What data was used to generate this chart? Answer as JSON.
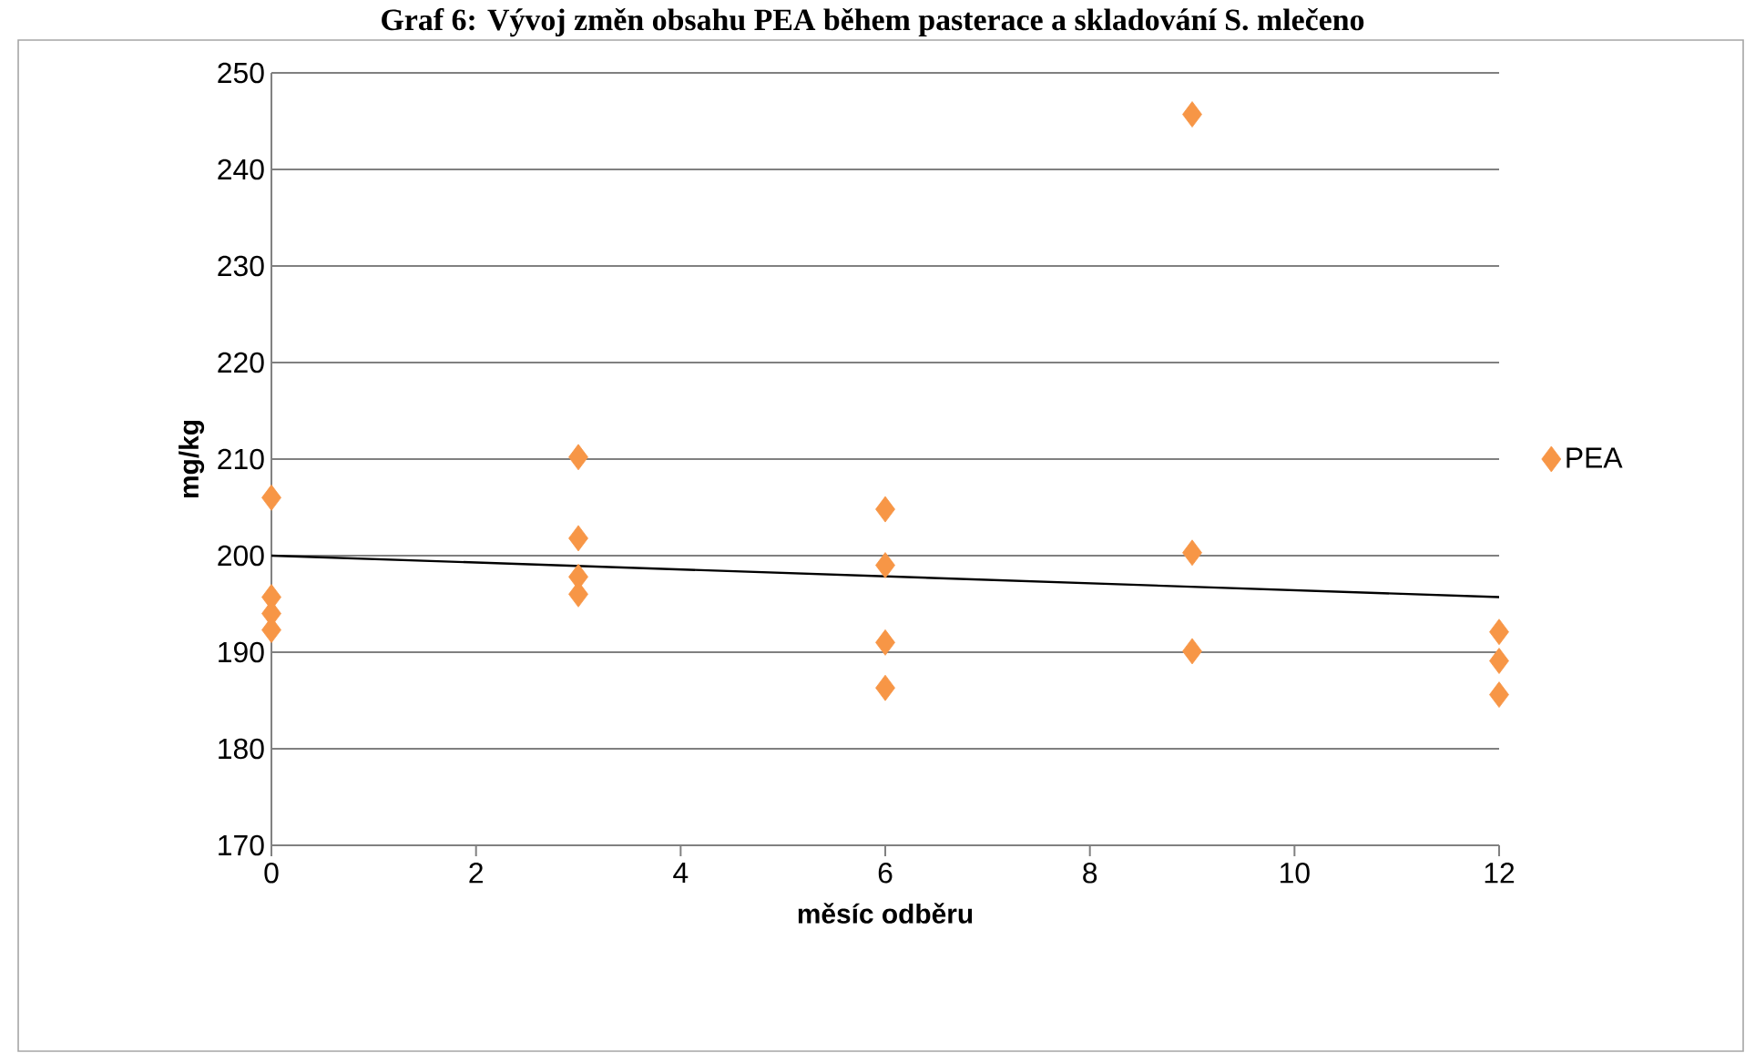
{
  "chart_data": {
    "type": "scatter",
    "title": "Graf 6: Vývoj změn obsahu PEA během pasterace a skladování S. mlečeno",
    "xlabel": "měsíc odběru",
    "ylabel": "mg/kg",
    "xlim": [
      0,
      12
    ],
    "xticks": [
      0,
      2,
      4,
      6,
      8,
      10,
      12
    ],
    "ylim": [
      170,
      250
    ],
    "yticks": [
      170,
      180,
      190,
      200,
      210,
      220,
      230,
      240,
      250
    ],
    "grid": "y",
    "legend": "right",
    "marker": "diamond",
    "series": [
      {
        "name": "PEA",
        "color": "#f79646",
        "x": [
          0,
          0,
          0,
          0,
          3,
          3,
          3,
          3,
          6,
          6,
          6,
          6,
          9,
          9,
          9,
          12,
          12,
          12
        ],
        "values": [
          206,
          195.7,
          194,
          192.3,
          210.2,
          201.8,
          197.8,
          196,
          204.8,
          199,
          191,
          186.3,
          245.7,
          200.3,
          190.1,
          192.1,
          189.1,
          185.6
        ]
      },
      {
        "type": "line",
        "marker": "none",
        "color": "#000000",
        "x": [
          0,
          12
        ],
        "values": [
          200,
          195.7
        ]
      }
    ]
  }
}
